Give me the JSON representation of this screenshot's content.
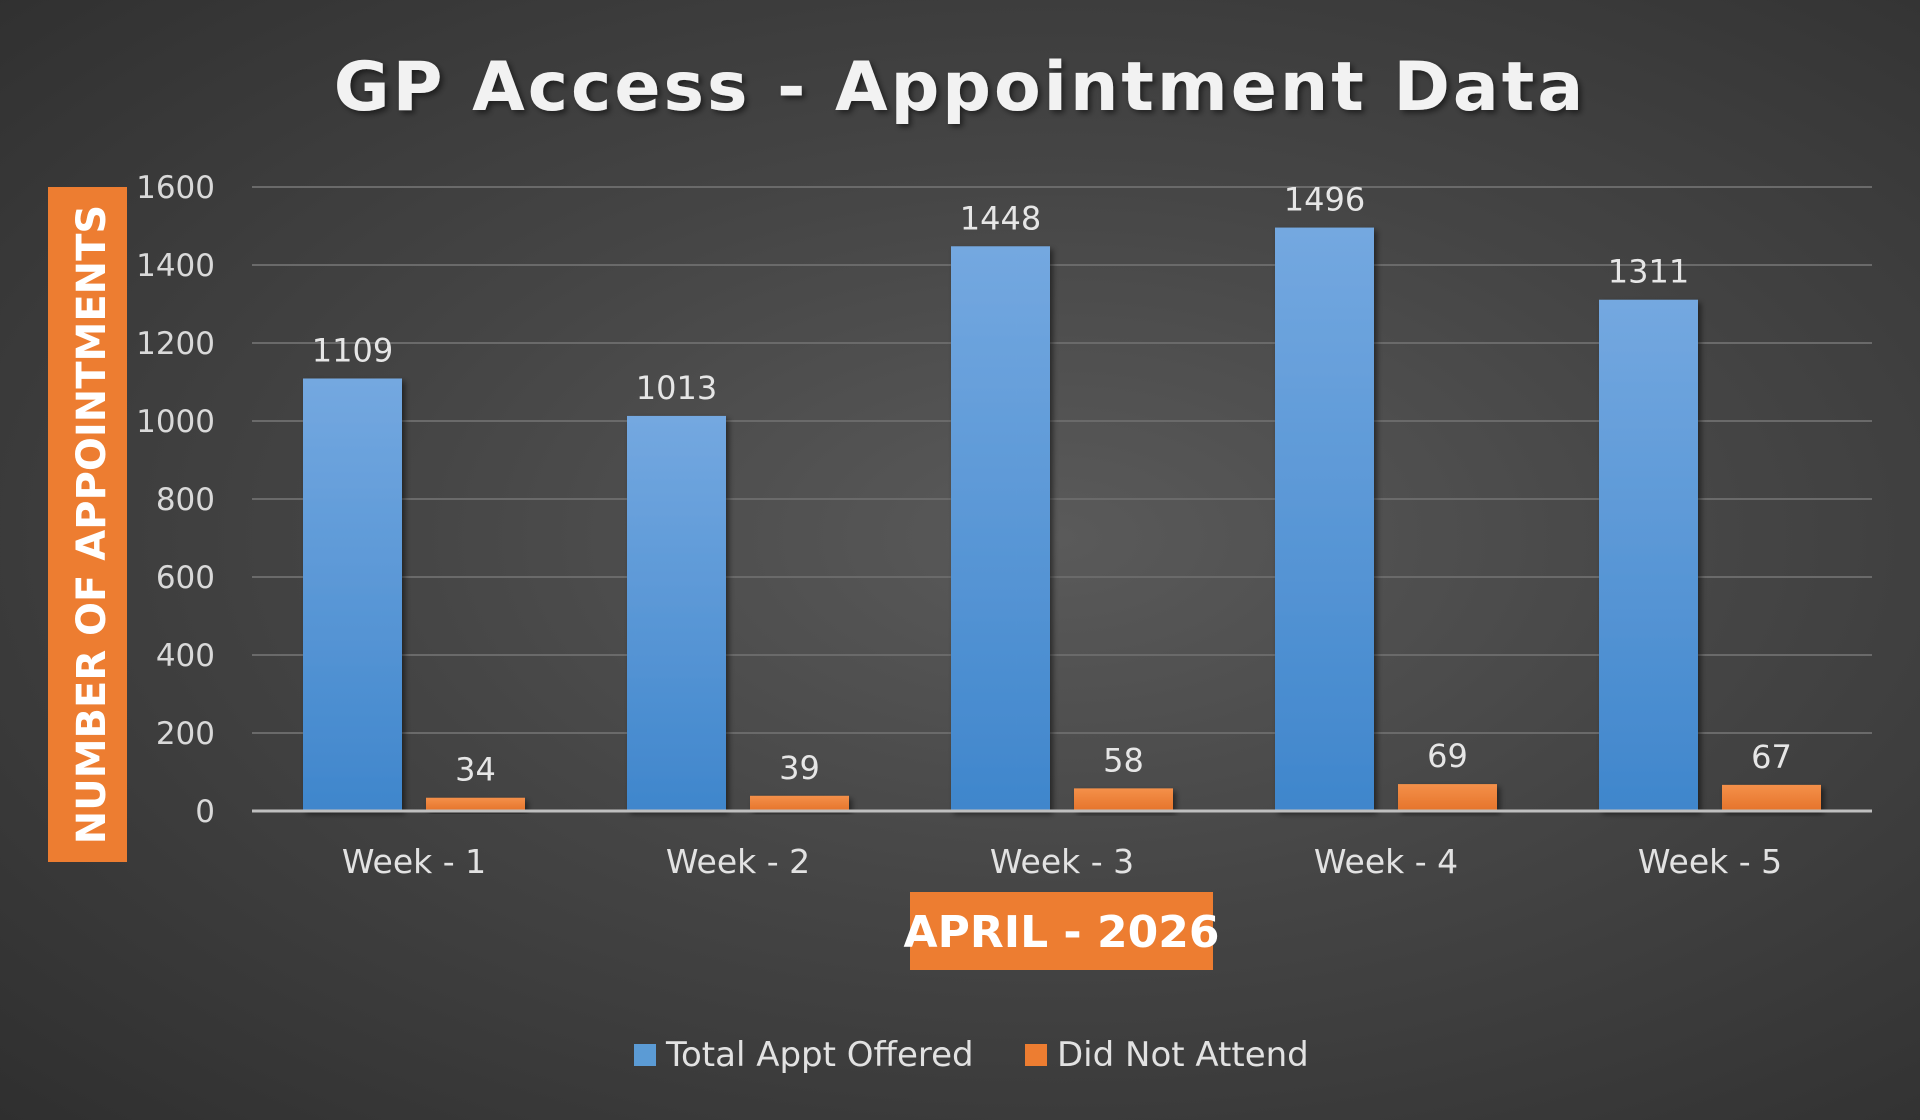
{
  "chart_data": {
    "type": "bar",
    "title": "GP Access - Appointment Data",
    "xlabel": "APRIL - 2026",
    "ylabel": "NUMBER OF APPOINTMENTS",
    "categories": [
      "Week - 1",
      "Week - 2",
      "Week - 3",
      "Week - 4",
      "Week - 5"
    ],
    "series": [
      {
        "name": "Total Appt Offered",
        "color": "#5b9bd5",
        "values": [
          1109,
          1013,
          1448,
          1496,
          1311
        ]
      },
      {
        "name": "Did Not Attend",
        "color": "#ed7d31",
        "values": [
          34,
          39,
          58,
          69,
          67
        ]
      }
    ],
    "ylim": [
      0,
      1600
    ],
    "yticks": [
      0,
      200,
      400,
      600,
      800,
      1000,
      1200,
      1400,
      1600
    ],
    "grid": true,
    "data_labels": true,
    "legend_position": "bottom",
    "axis_title_color": "#ed7d31"
  }
}
